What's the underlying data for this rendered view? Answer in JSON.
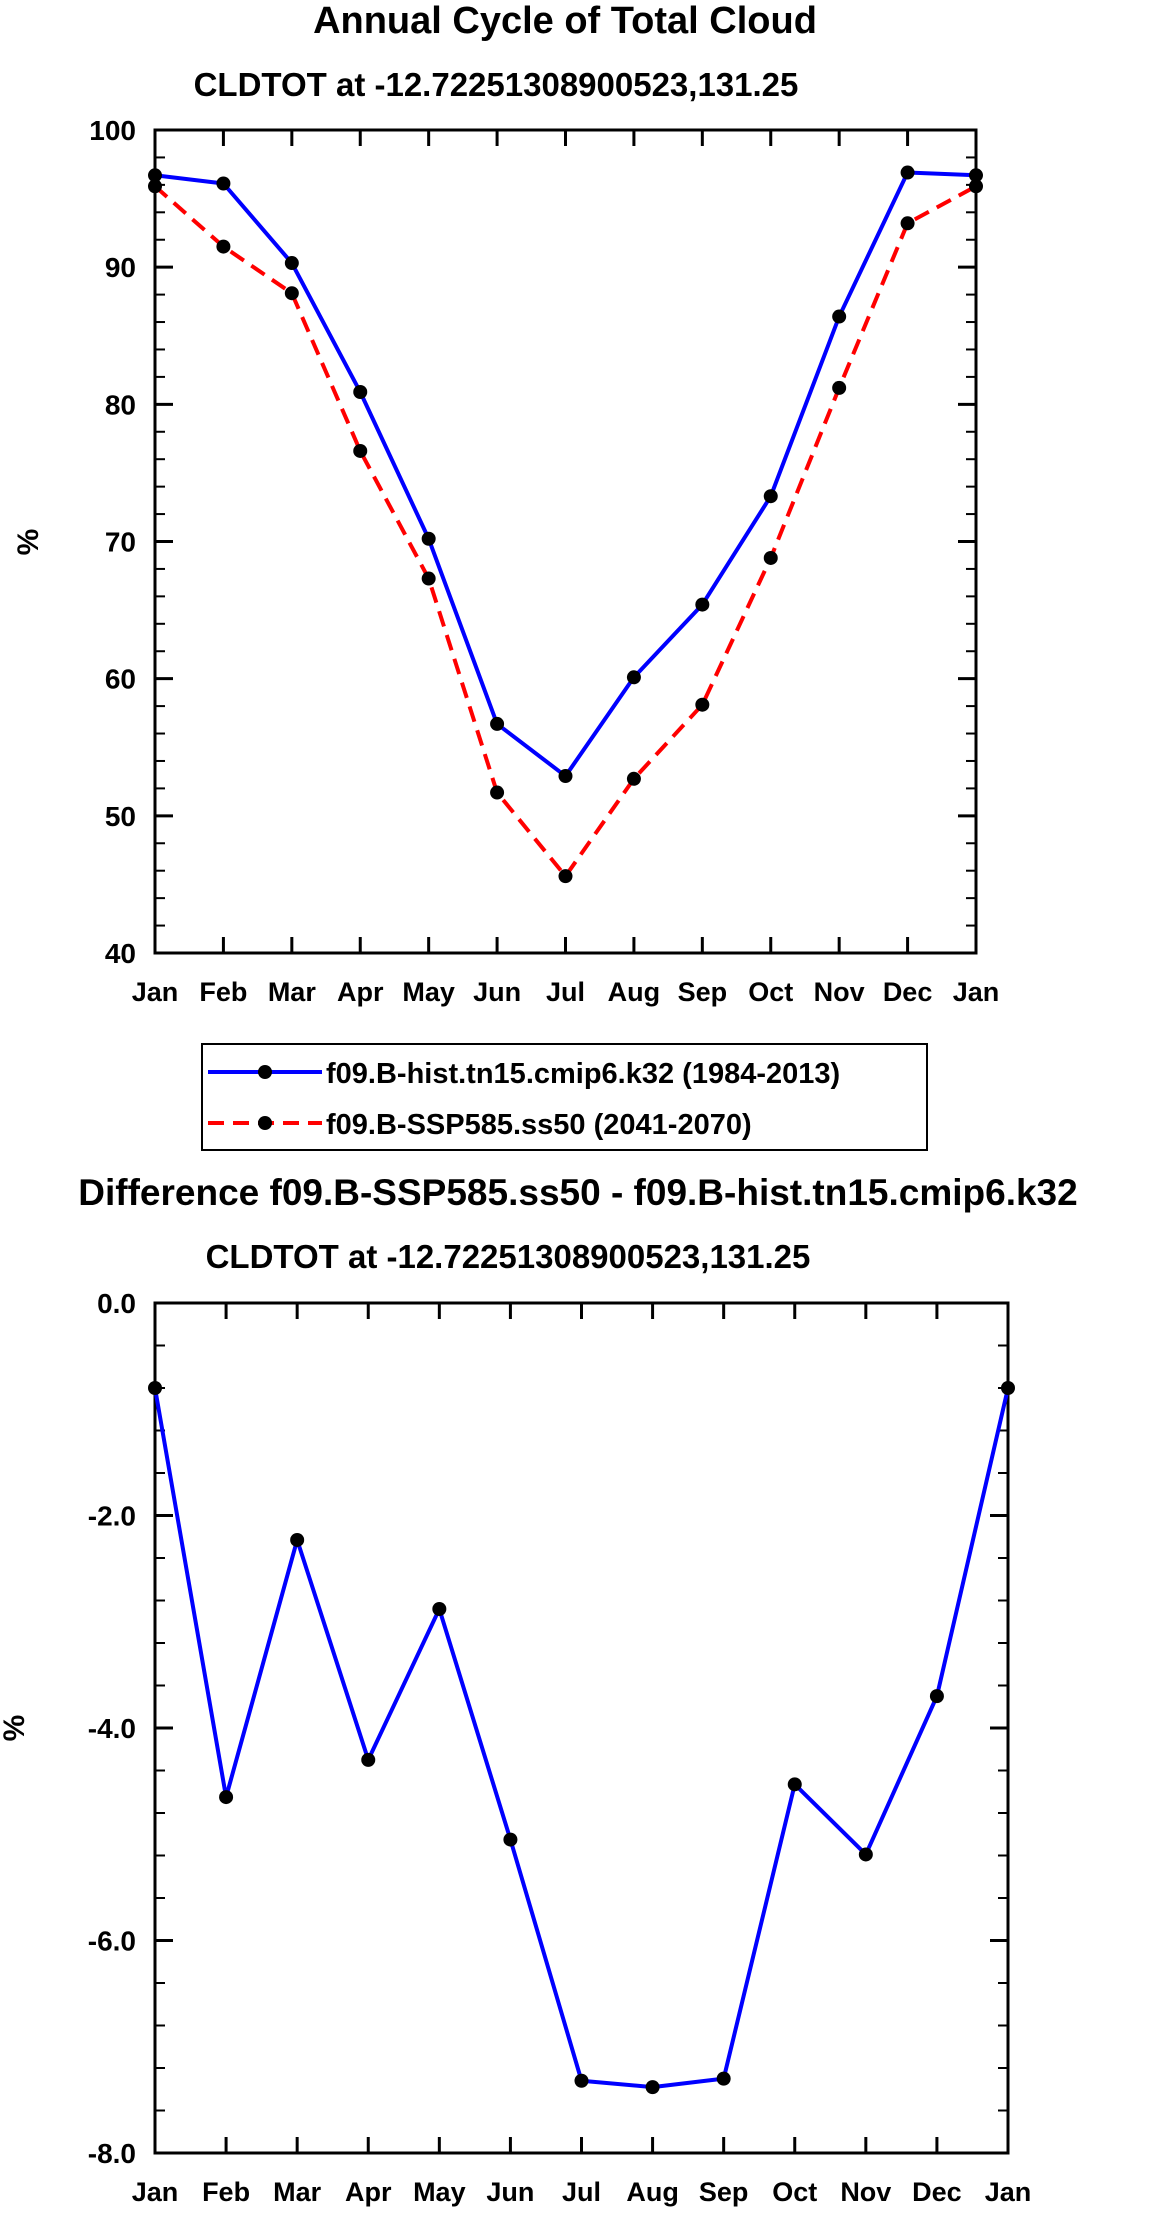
{
  "chart_data": [
    {
      "type": "line",
      "title": "Annual Cycle of Total Cloud",
      "subtitle": "CLDTOT at -12.72251308900523,131.25",
      "xlabel": "",
      "ylabel": "%",
      "categories": [
        "Jan",
        "Feb",
        "Mar",
        "Apr",
        "May",
        "Jun",
        "Jul",
        "Aug",
        "Sep",
        "Oct",
        "Nov",
        "Dec",
        "Jan"
      ],
      "ylim": [
        40,
        100
      ],
      "yticks": [
        "40",
        "50",
        "60",
        "70",
        "80",
        "90",
        "100"
      ],
      "series": [
        {
          "name": "f09.B-hist.tn15.cmip6.k32 (1984-2013)",
          "color": "#0000ff",
          "dash": "solid",
          "values": [
            96.7,
            96.1,
            90.3,
            80.9,
            70.2,
            56.7,
            52.9,
            60.1,
            65.4,
            73.3,
            86.4,
            96.9,
            96.7
          ]
        },
        {
          "name": "f09.B-SSP585.ss50 (2041-2070)",
          "color": "#ff0000",
          "dash": "dashed",
          "values": [
            95.9,
            91.5,
            88.1,
            76.6,
            67.3,
            51.7,
            45.6,
            52.7,
            58.1,
            68.8,
            81.2,
            93.2,
            95.9
          ]
        }
      ],
      "legend": {
        "position": "bottom",
        "entries": [
          "f09.B-hist.tn15.cmip6.k32 (1984-2013)",
          "f09.B-SSP585.ss50 (2041-2070)"
        ]
      }
    },
    {
      "type": "line",
      "title": "Difference f09.B-SSP585.ss50 - f09.B-hist.tn15.cmip6.k32",
      "subtitle": "CLDTOT at -12.72251308900523,131.25",
      "xlabel": "",
      "ylabel": "%",
      "categories": [
        "Jan",
        "Feb",
        "Mar",
        "Apr",
        "May",
        "Jun",
        "Jul",
        "Aug",
        "Sep",
        "Oct",
        "Nov",
        "Dec",
        "Jan"
      ],
      "ylim": [
        -8.0,
        0.0
      ],
      "yticks": [
        "-8.0",
        "-6.0",
        "-4.0",
        "-2.0",
        "0.0"
      ],
      "series": [
        {
          "name": "Difference",
          "color": "#0000ff",
          "dash": "solid",
          "values": [
            -0.8,
            -4.65,
            -2.23,
            -4.3,
            -2.88,
            -5.05,
            -7.32,
            -7.38,
            -7.3,
            -4.53,
            -5.19,
            -3.7,
            -0.8
          ]
        }
      ]
    }
  ]
}
